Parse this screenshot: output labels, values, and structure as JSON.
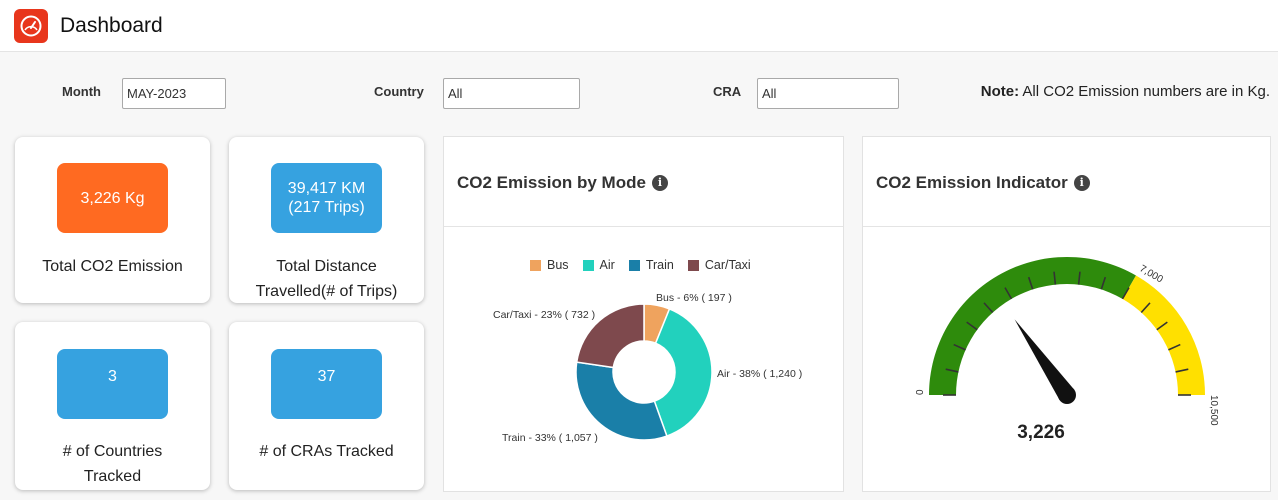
{
  "header": {
    "title": "Dashboard",
    "icon": "speedometer-icon"
  },
  "filters": {
    "month": {
      "label": "Month",
      "value": "MAY-2023"
    },
    "country": {
      "label": "Country",
      "value": "All"
    },
    "cra": {
      "label": "CRA",
      "value": "All"
    }
  },
  "note": {
    "prefix": "Note:",
    "text": " All CO2 Emission numbers are in Kg."
  },
  "kpis": [
    {
      "value": "3,226 Kg",
      "label": "Total CO2 Emission",
      "color": "#ff6a21"
    },
    {
      "value_line1": "39,417 KM",
      "value_line2": "(217 Trips)",
      "label_line1": "Total Distance",
      "label_line2": "Travelled(# of Trips)",
      "color": "#36a2e0"
    },
    {
      "value": "3",
      "label_line1": "# of Countries",
      "label_line2": "Tracked",
      "color": "#36a2e0"
    },
    {
      "value": "37",
      "label": "# of CRAs Tracked",
      "color": "#36a2e0"
    }
  ],
  "mode_panel": {
    "title": "CO2 Emission by Mode",
    "info_icon": "info-icon"
  },
  "indicator_panel": {
    "title": "CO2 Emission Indicator",
    "info_icon": "info-icon"
  },
  "chart_data": [
    {
      "type": "pie",
      "title": "CO2 Emission by Mode",
      "donut": true,
      "legend": "top",
      "categories": [
        "Bus",
        "Air",
        "Train",
        "Car/Taxi"
      ],
      "values": [
        197,
        1240,
        1057,
        732
      ],
      "percent_labels": [
        "6%",
        "38%",
        "33%",
        "23%"
      ],
      "data_labels": [
        "Bus - 6% ( 197 )",
        "Air - 38% ( 1,240 )",
        "Train - 33% ( 1,057 )",
        "Car/Taxi - 23% ( 732 )"
      ],
      "colors": [
        "#efa35e",
        "#22d1bd",
        "#1a7fa8",
        "#7e494d"
      ]
    },
    {
      "type": "gauge",
      "title": "CO2 Emission Indicator",
      "min": 0,
      "max": 10500,
      "value": 3226,
      "value_label": "3,226",
      "threshold": 7000,
      "tick_labels": [
        "0",
        "7,000",
        "10,500"
      ],
      "bands": [
        {
          "from": 0,
          "to": 7000,
          "color": "#2e8b0c"
        },
        {
          "from": 7000,
          "to": 10500,
          "color": "#ffe000"
        }
      ]
    }
  ]
}
